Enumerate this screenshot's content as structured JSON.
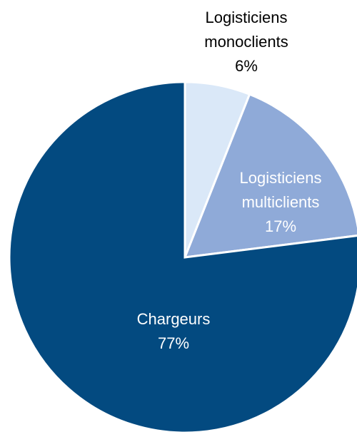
{
  "chart_data": {
    "type": "pie",
    "categories": [
      "Logisticiens monoclients",
      "Logisticiens multiclients",
      "Chargeurs"
    ],
    "values": [
      6,
      17,
      77
    ],
    "value_labels": [
      "6%",
      "17%",
      "77%"
    ],
    "colors": [
      "#dae8f8",
      "#8faad8",
      "#034a80"
    ],
    "label_colors": [
      "#000000",
      "#ffffff",
      "#ffffff"
    ]
  }
}
